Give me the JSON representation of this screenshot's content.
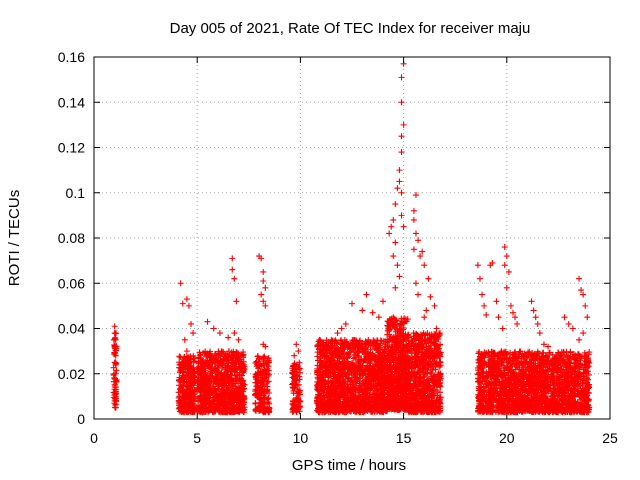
{
  "chart_data": {
    "type": "scatter",
    "title": "Day 005 of 2021, Rate Of TEC Index for receiver maju",
    "xlabel": "GPS time / hours",
    "ylabel": "ROTI / TECUs",
    "xlim": [
      0,
      25
    ],
    "ylim": [
      0,
      0.16
    ],
    "xticks": [
      0,
      5,
      10,
      15,
      20,
      25
    ],
    "xtick_labels": [
      "0",
      "5",
      "10",
      "15",
      "20",
      "25"
    ],
    "yticks": [
      0,
      0.02,
      0.04,
      0.06,
      0.08,
      0.1,
      0.12,
      0.14,
      0.16
    ],
    "ytick_labels": [
      "0",
      "0.02",
      "0.04",
      "0.06",
      "0.08",
      "0.1",
      "0.12",
      "0.14",
      "0.16"
    ],
    "grid": true,
    "marker": "+",
    "color": "#ff0000",
    "series": [
      {
        "name": "ROTI",
        "points": [
          [
            1.0,
            0.041
          ],
          [
            1.0,
            0.038
          ],
          [
            1.05,
            0.035
          ],
          [
            1.0,
            0.032
          ],
          [
            1.05,
            0.028
          ],
          [
            1.0,
            0.025
          ],
          [
            1.05,
            0.02
          ],
          [
            1.0,
            0.015
          ],
          [
            1.05,
            0.012
          ],
          [
            1.0,
            0.008
          ],
          [
            1.05,
            0.005
          ],
          [
            1.0,
            0.018
          ],
          [
            4.2,
            0.06
          ],
          [
            4.3,
            0.051
          ],
          [
            4.5,
            0.053
          ],
          [
            4.6,
            0.05
          ],
          [
            4.7,
            0.042
          ],
          [
            4.4,
            0.035
          ],
          [
            4.8,
            0.038
          ],
          [
            4.5,
            0.03
          ],
          [
            5.5,
            0.043
          ],
          [
            5.8,
            0.04
          ],
          [
            6.1,
            0.038
          ],
          [
            6.5,
            0.036
          ],
          [
            6.8,
            0.038
          ],
          [
            7.0,
            0.035
          ],
          [
            6.7,
            0.071
          ],
          [
            6.7,
            0.066
          ],
          [
            6.8,
            0.062
          ],
          [
            6.9,
            0.052
          ],
          [
            8.0,
            0.072
          ],
          [
            8.1,
            0.071
          ],
          [
            8.2,
            0.065
          ],
          [
            8.2,
            0.061
          ],
          [
            8.3,
            0.058
          ],
          [
            8.1,
            0.055
          ],
          [
            8.2,
            0.052
          ],
          [
            8.3,
            0.05
          ],
          [
            8.2,
            0.033
          ],
          [
            8.3,
            0.032
          ],
          [
            9.8,
            0.033
          ],
          [
            9.9,
            0.03
          ],
          [
            9.7,
            0.028
          ],
          [
            11.0,
            0.032
          ],
          [
            11.5,
            0.035
          ],
          [
            11.8,
            0.038
          ],
          [
            12.0,
            0.04
          ],
          [
            12.2,
            0.042
          ],
          [
            12.5,
            0.051
          ],
          [
            13.0,
            0.048
          ],
          [
            13.2,
            0.055
          ],
          [
            13.5,
            0.047
          ],
          [
            13.8,
            0.045
          ],
          [
            14.0,
            0.052
          ],
          [
            14.3,
            0.082
          ],
          [
            14.4,
            0.085
          ],
          [
            14.5,
            0.088
          ],
          [
            14.6,
            0.095
          ],
          [
            14.7,
            0.102
          ],
          [
            14.8,
            0.105
          ],
          [
            14.9,
            0.1
          ],
          [
            14.8,
            0.11
          ],
          [
            14.9,
            0.118
          ],
          [
            14.9,
            0.125
          ],
          [
            15.0,
            0.13
          ],
          [
            14.9,
            0.14
          ],
          [
            14.9,
            0.151
          ],
          [
            15.0,
            0.157
          ],
          [
            14.6,
            0.078
          ],
          [
            14.5,
            0.072
          ],
          [
            14.7,
            0.068
          ],
          [
            14.8,
            0.063
          ],
          [
            14.6,
            0.058
          ],
          [
            14.9,
            0.09
          ],
          [
            15.0,
            0.085
          ],
          [
            15.5,
            0.092
          ],
          [
            15.6,
            0.099
          ],
          [
            15.5,
            0.088
          ],
          [
            15.6,
            0.082
          ],
          [
            15.7,
            0.079
          ],
          [
            15.5,
            0.075
          ],
          [
            15.8,
            0.072
          ],
          [
            15.9,
            0.074
          ],
          [
            16.0,
            0.068
          ],
          [
            16.2,
            0.062
          ],
          [
            15.6,
            0.06
          ],
          [
            15.7,
            0.055
          ],
          [
            16.3,
            0.054
          ],
          [
            16.5,
            0.05
          ],
          [
            16.1,
            0.048
          ],
          [
            16.0,
            0.045
          ],
          [
            16.6,
            0.04
          ],
          [
            18.6,
            0.068
          ],
          [
            18.7,
            0.062
          ],
          [
            18.8,
            0.055
          ],
          [
            18.9,
            0.05
          ],
          [
            19.0,
            0.046
          ],
          [
            19.2,
            0.068
          ],
          [
            19.3,
            0.069
          ],
          [
            19.5,
            0.052
          ],
          [
            19.6,
            0.045
          ],
          [
            19.8,
            0.04
          ],
          [
            19.9,
            0.076
          ],
          [
            20.0,
            0.072
          ],
          [
            19.9,
            0.068
          ],
          [
            20.1,
            0.065
          ],
          [
            20.0,
            0.058
          ],
          [
            20.2,
            0.05
          ],
          [
            20.3,
            0.047
          ],
          [
            20.4,
            0.045
          ],
          [
            20.5,
            0.042
          ],
          [
            21.2,
            0.052
          ],
          [
            21.3,
            0.048
          ],
          [
            21.4,
            0.045
          ],
          [
            21.5,
            0.042
          ],
          [
            21.6,
            0.038
          ],
          [
            21.8,
            0.033
          ],
          [
            22.0,
            0.032
          ],
          [
            22.8,
            0.045
          ],
          [
            23.0,
            0.042
          ],
          [
            23.2,
            0.04
          ],
          [
            23.5,
            0.062
          ],
          [
            23.6,
            0.057
          ],
          [
            23.7,
            0.055
          ],
          [
            23.8,
            0.05
          ],
          [
            23.9,
            0.045
          ],
          [
            23.7,
            0.038
          ],
          [
            23.5,
            0.035
          ]
        ],
        "dense_bands": [
          {
            "x": [
              0.95,
              1.1
            ],
            "y": [
              0.005,
              0.038
            ],
            "n": 60
          },
          {
            "x": [
              4.1,
              4.9
            ],
            "y": [
              0.003,
              0.028
            ],
            "n": 320
          },
          {
            "x": [
              5.0,
              7.3
            ],
            "y": [
              0.003,
              0.03
            ],
            "n": 900
          },
          {
            "x": [
              7.8,
              8.5
            ],
            "y": [
              0.003,
              0.028
            ],
            "n": 200
          },
          {
            "x": [
              9.6,
              10.0
            ],
            "y": [
              0.003,
              0.025
            ],
            "n": 110
          },
          {
            "x": [
              10.8,
              14.2
            ],
            "y": [
              0.003,
              0.035
            ],
            "n": 1500
          },
          {
            "x": [
              14.2,
              15.2
            ],
            "y": [
              0.004,
              0.045
            ],
            "n": 650
          },
          {
            "x": [
              15.2,
              16.8
            ],
            "y": [
              0.003,
              0.038
            ],
            "n": 750
          },
          {
            "x": [
              18.6,
              24.0
            ],
            "y": [
              0.003,
              0.03
            ],
            "n": 2000
          }
        ]
      }
    ]
  }
}
